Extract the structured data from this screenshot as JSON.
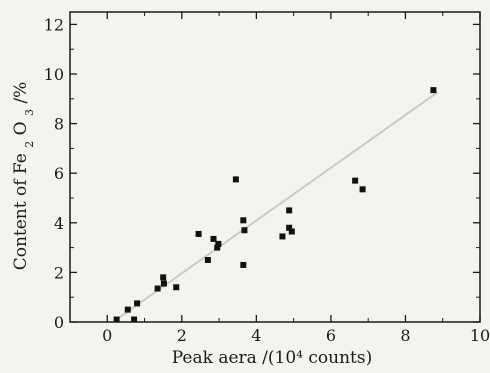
{
  "chart_data": {
    "type": "scatter",
    "title": "",
    "xlabel": "Peak aera /(10⁴ counts)",
    "ylabel_main": "Content of Fe",
    "ylabel_sub2": "2",
    "ylabel_mid": "O",
    "ylabel_sub3": "3",
    "ylabel_tail": " /%",
    "xlim": [
      -1,
      10
    ],
    "ylim": [
      0,
      12.5
    ],
    "x_ticks": [
      0,
      2,
      4,
      6,
      8,
      10
    ],
    "y_ticks": [
      0,
      2,
      4,
      6,
      8,
      10,
      12
    ],
    "x_tick_labels": [
      "0",
      "2",
      "4",
      "6",
      "8",
      "10"
    ],
    "y_tick_labels": [
      "0",
      "2",
      "4",
      "6",
      "8",
      "10",
      "12"
    ],
    "grid": false,
    "legend": "none",
    "marker_color": "#111111",
    "fit_line_color": "#c9c9c6",
    "points": [
      {
        "x": 0.25,
        "y": 0.1
      },
      {
        "x": 0.55,
        "y": 0.5
      },
      {
        "x": 0.72,
        "y": 0.1
      },
      {
        "x": 0.8,
        "y": 0.75
      },
      {
        "x": 1.35,
        "y": 1.35
      },
      {
        "x": 1.5,
        "y": 1.8
      },
      {
        "x": 1.52,
        "y": 1.55
      },
      {
        "x": 1.85,
        "y": 1.4
      },
      {
        "x": 2.45,
        "y": 3.55
      },
      {
        "x": 2.7,
        "y": 2.5
      },
      {
        "x": 2.85,
        "y": 3.35
      },
      {
        "x": 2.95,
        "y": 3.0
      },
      {
        "x": 2.98,
        "y": 3.15
      },
      {
        "x": 3.45,
        "y": 5.75
      },
      {
        "x": 3.65,
        "y": 4.1
      },
      {
        "x": 3.68,
        "y": 3.7
      },
      {
        "x": 3.65,
        "y": 2.3
      },
      {
        "x": 4.7,
        "y": 3.45
      },
      {
        "x": 4.88,
        "y": 4.5
      },
      {
        "x": 4.88,
        "y": 3.8
      },
      {
        "x": 4.95,
        "y": 3.65
      },
      {
        "x": 6.65,
        "y": 5.7
      },
      {
        "x": 6.85,
        "y": 5.35
      },
      {
        "x": 8.75,
        "y": 9.35
      }
    ],
    "fit_line": {
      "x": [
        0.2,
        8.85
      ],
      "y": [
        0.05,
        9.25
      ]
    }
  }
}
